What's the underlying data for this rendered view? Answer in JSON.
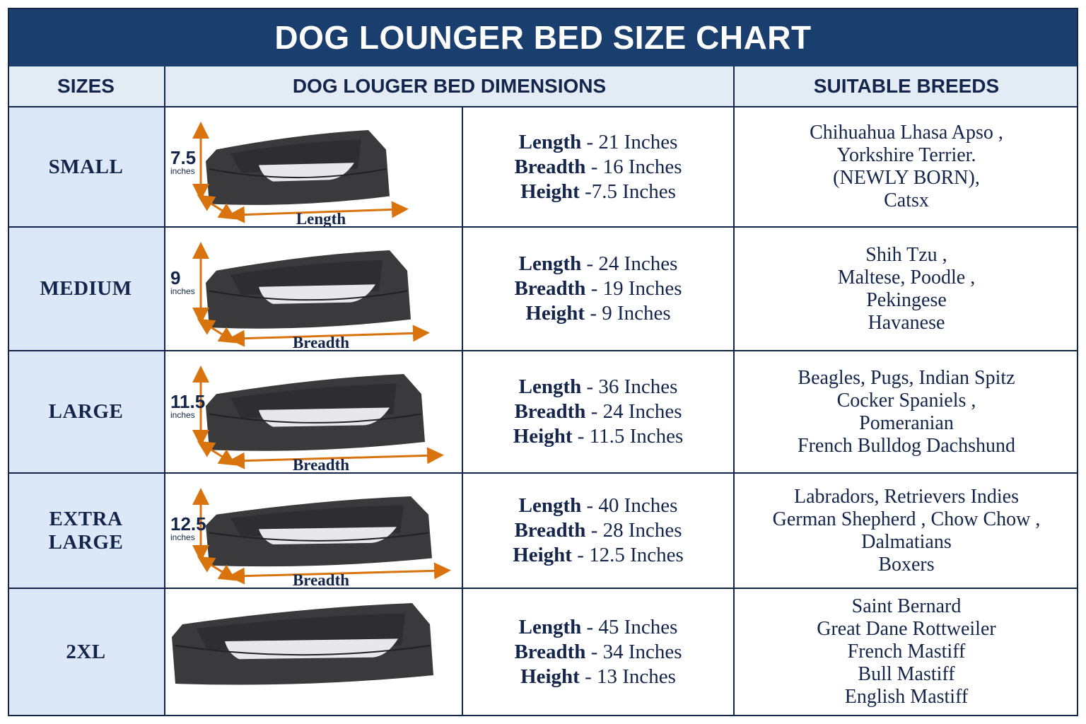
{
  "title": "DOG LOUNGER BED SIZE CHART",
  "headers": {
    "sizes": "SIZES",
    "dimensions": "DOG LOUGER BED DIMENSIONS",
    "breeds": "SUITABLE BREEDS"
  },
  "colors": {
    "header_bg": "#1a3f6e",
    "text": "#13254a",
    "arrow": "#d9730d",
    "bed": "#3a3a3c",
    "cushion": "#e8e8ec"
  },
  "rows": [
    {
      "size": "SMALL",
      "height_label": "7.5",
      "unit_label": "inches",
      "axis_label": "Length",
      "length": "Length",
      "length_val": " - 21 Inches",
      "breadth": "Breadth",
      "breadth_val": " - 16 Inches",
      "height": "Height",
      "height_val": " -7.5 Inches",
      "breeds": [
        "Chihuahua Lhasa Apso ,",
        "Yorkshire Terrier.",
        "(NEWLY BORN),",
        "Catsx"
      ]
    },
    {
      "size": "MEDIUM",
      "height_label": "9",
      "unit_label": "inches",
      "axis_label": "Breadth",
      "length": "Length",
      "length_val": " - 24 Inches",
      "breadth": "Breadth",
      "breadth_val": " - 19 Inches",
      "height": "Height",
      "height_val": " - 9 Inches",
      "breeds": [
        "Shih Tzu ,",
        "Maltese, Poodle ,",
        "Pekingese",
        "Havanese"
      ]
    },
    {
      "size": "LARGE",
      "height_label": "11.5",
      "unit_label": "inches",
      "axis_label": "Breadth",
      "length": "Length",
      "length_val": " - 36 Inches",
      "breadth": "Breadth",
      "breadth_val": " - 24 Inches",
      "height": "Height",
      "height_val": " - 11.5 Inches",
      "breeds": [
        "Beagles, Pugs, Indian Spitz",
        "Cocker Spaniels ,",
        "Pomeranian",
        "French Bulldog Dachshund"
      ]
    },
    {
      "size": "EXTRA LARGE",
      "height_label": "12.5",
      "unit_label": "inches",
      "axis_label": "Breadth",
      "length": "Length",
      "length_val": " - 40 Inches",
      "breadth": "Breadth",
      "breadth_val": " - 28 Inches",
      "height": "Height",
      "height_val": " - 12.5 Inches",
      "breeds": [
        "Labradors, Retrievers Indies",
        "German Shepherd , Chow Chow ,",
        "Dalmatians",
        "Boxers"
      ]
    },
    {
      "size": "2XL",
      "length": "Length",
      "length_val": " - 45 Inches",
      "breadth": "Breadth",
      "breadth_val": " - 34 Inches",
      "height": "Height",
      "height_val": " - 13 Inches",
      "breeds": [
        "Saint Bernard",
        "Great Dane Rottweiler",
        "French Mastiff",
        "Bull Mastiff",
        "English Mastiff"
      ]
    }
  ]
}
